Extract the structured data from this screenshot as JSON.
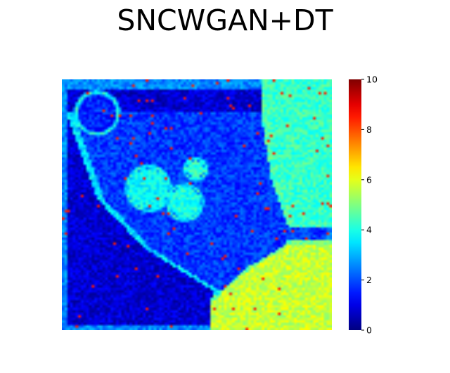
{
  "chart_data": {
    "type": "heatmap",
    "title": "SNCWGAN+DT",
    "xlabel": "",
    "ylabel": "",
    "colormap": "jet",
    "colorbar": {
      "range": [
        0,
        10
      ],
      "ticks": [
        "0",
        "2",
        "4",
        "6",
        "8",
        "10"
      ],
      "placement": "right"
    },
    "grid": false,
    "axes_visible": false,
    "grid_shape": [
      100,
      100
    ],
    "regions": [
      {
        "label": "background (lower-left)",
        "value": 0.8
      },
      {
        "label": "central region",
        "value": 1.8
      },
      {
        "label": "right region",
        "value": 4.3
      },
      {
        "label": "bottom-right region",
        "value": 5.7
      },
      {
        "label": "cell 1",
        "value": 3.8
      },
      {
        "label": "cell 2",
        "value": 4.0
      },
      {
        "label": "cell 3",
        "value": 4.2
      },
      {
        "label": "small cell (upper-left)",
        "value": 1.6
      },
      {
        "label": "boundary ridges",
        "value": 3.5
      },
      {
        "label": "hot spots",
        "value": 8.5
      }
    ]
  }
}
